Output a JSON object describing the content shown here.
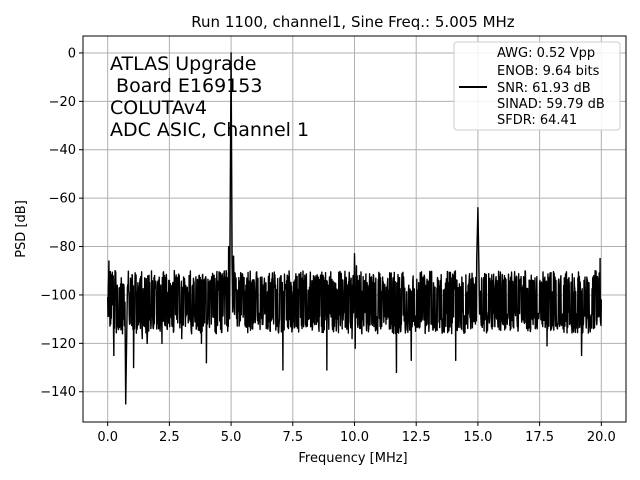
{
  "chart_data": {
    "type": "line",
    "title": "Run 1100, channel1, Sine Freq.: 5.005 MHz",
    "xlabel": "Frequency [MHz]",
    "ylabel": "PSD [dB]",
    "xlim": [
      -1.0,
      21.0
    ],
    "ylim": [
      -152.5,
      7.0
    ],
    "xticks": [
      0.0,
      2.5,
      5.0,
      7.5,
      10.0,
      12.5,
      15.0,
      17.5,
      20.0
    ],
    "xtick_labels": [
      "0.0",
      "2.5",
      "5.0",
      "7.5",
      "10.0",
      "12.5",
      "15.0",
      "17.5",
      "20.0"
    ],
    "yticks": [
      0,
      -20,
      -40,
      -60,
      -80,
      -100,
      -120,
      -140
    ],
    "ytick_labels": [
      "0",
      "−20",
      "−40",
      "−60",
      "−80",
      "−100",
      "−120",
      "−140"
    ],
    "grid": true,
    "noise_floor_db": -103,
    "series": [
      {
        "color": "#000000",
        "points": [
          [
            0.0,
            -101
          ],
          [
            0.05,
            -86
          ],
          [
            0.12,
            -112
          ],
          [
            0.2,
            -104
          ],
          [
            0.25,
            -125
          ],
          [
            0.3,
            -90
          ],
          [
            0.4,
            -113
          ],
          [
            0.5,
            -97
          ],
          [
            0.6,
            -116
          ],
          [
            0.7,
            -103
          ],
          [
            0.73,
            -145
          ],
          [
            0.8,
            -97
          ],
          [
            0.9,
            -112
          ],
          [
            1.0,
            -92
          ],
          [
            1.05,
            -130
          ],
          [
            1.1,
            -97
          ],
          [
            1.2,
            -113
          ],
          [
            1.3,
            -95
          ],
          [
            1.4,
            -118
          ],
          [
            1.5,
            -93
          ],
          [
            1.6,
            -120
          ],
          [
            1.7,
            -95
          ],
          [
            1.8,
            -109
          ],
          [
            1.9,
            -92
          ],
          [
            2.0,
            -111
          ],
          [
            2.1,
            -103
          ],
          [
            2.2,
            -120
          ],
          [
            2.3,
            -92
          ],
          [
            2.4,
            -113
          ],
          [
            2.5,
            -94
          ],
          [
            2.6,
            -112
          ],
          [
            2.7,
            -90
          ],
          [
            2.8,
            -110
          ],
          [
            2.9,
            -92
          ],
          [
            3.0,
            -118
          ],
          [
            3.1,
            -97
          ],
          [
            3.2,
            -108
          ],
          [
            3.3,
            -92
          ],
          [
            3.4,
            -116
          ],
          [
            3.5,
            -95
          ],
          [
            3.6,
            -113
          ],
          [
            3.7,
            -92
          ],
          [
            3.8,
            -120
          ],
          [
            3.9,
            -96
          ],
          [
            4.0,
            -128
          ],
          [
            4.1,
            -97
          ],
          [
            4.2,
            -112
          ],
          [
            4.3,
            -92
          ],
          [
            4.4,
            -116
          ],
          [
            4.5,
            -98
          ],
          [
            4.6,
            -108
          ],
          [
            4.7,
            -95
          ],
          [
            4.75,
            -112
          ],
          [
            4.8,
            -90
          ],
          [
            4.85,
            -109
          ],
          [
            4.9,
            -80
          ],
          [
            4.95,
            -86
          ],
          [
            5.0,
            0
          ],
          [
            5.04,
            -84
          ],
          [
            5.08,
            -104
          ],
          [
            5.1,
            -84
          ],
          [
            5.2,
            -93
          ],
          [
            5.3,
            -107
          ],
          [
            5.4,
            -91
          ],
          [
            5.5,
            -106
          ],
          [
            5.6,
            -96
          ],
          [
            5.7,
            -112
          ],
          [
            5.8,
            -95
          ],
          [
            5.9,
            -109
          ],
          [
            6.0,
            -98
          ],
          [
            6.1,
            -112
          ],
          [
            6.2,
            -95
          ],
          [
            6.3,
            -108
          ],
          [
            6.4,
            -97
          ],
          [
            6.5,
            -113
          ],
          [
            6.6,
            -95
          ],
          [
            6.7,
            -110
          ],
          [
            6.8,
            -96
          ],
          [
            6.9,
            -111
          ],
          [
            7.0,
            -96
          ],
          [
            7.1,
            -131
          ],
          [
            7.2,
            -97
          ],
          [
            7.3,
            -110
          ],
          [
            7.4,
            -96
          ],
          [
            7.5,
            -113
          ],
          [
            7.6,
            -98
          ],
          [
            7.7,
            -111
          ],
          [
            7.8,
            -96
          ],
          [
            7.9,
            -112
          ],
          [
            8.0,
            -97
          ],
          [
            8.1,
            -108
          ],
          [
            8.2,
            -96
          ],
          [
            8.3,
            -113
          ],
          [
            8.4,
            -97
          ],
          [
            8.5,
            -111
          ],
          [
            8.6,
            -95
          ],
          [
            8.7,
            -110
          ],
          [
            8.8,
            -98
          ],
          [
            8.88,
            -131
          ],
          [
            9.0,
            -97
          ],
          [
            9.1,
            -112
          ],
          [
            9.2,
            -95
          ],
          [
            9.3,
            -110
          ],
          [
            9.4,
            -98
          ],
          [
            9.5,
            -114
          ],
          [
            9.6,
            -96
          ],
          [
            9.7,
            -112
          ],
          [
            9.8,
            -94
          ],
          [
            9.9,
            -118
          ],
          [
            9.95,
            -92
          ],
          [
            10.0,
            -83
          ],
          [
            10.03,
            -122
          ],
          [
            10.08,
            -88
          ],
          [
            10.15,
            -112
          ],
          [
            10.2,
            -92
          ],
          [
            10.3,
            -116
          ],
          [
            10.4,
            -95
          ],
          [
            10.5,
            -111
          ],
          [
            10.6,
            -98
          ],
          [
            10.7,
            -112
          ],
          [
            10.8,
            -96
          ],
          [
            10.9,
            -110
          ],
          [
            11.0,
            -98
          ],
          [
            11.1,
            -113
          ],
          [
            11.2,
            -96
          ],
          [
            11.3,
            -109
          ],
          [
            11.4,
            -98
          ],
          [
            11.5,
            -112
          ],
          [
            11.6,
            -96
          ],
          [
            11.7,
            -132
          ],
          [
            11.8,
            -98
          ],
          [
            11.9,
            -112
          ],
          [
            12.0,
            -96
          ],
          [
            12.1,
            -110
          ],
          [
            12.2,
            -96
          ],
          [
            12.3,
            -127
          ],
          [
            12.4,
            -98
          ],
          [
            12.5,
            -113
          ],
          [
            12.6,
            -95
          ],
          [
            12.7,
            -111
          ],
          [
            12.8,
            -96
          ],
          [
            12.9,
            -109
          ],
          [
            13.0,
            -98
          ],
          [
            13.1,
            -112
          ],
          [
            13.2,
            -95
          ],
          [
            13.3,
            -108
          ],
          [
            13.4,
            -96
          ],
          [
            13.5,
            -110
          ],
          [
            13.6,
            -98
          ],
          [
            13.7,
            -113
          ],
          [
            13.8,
            -95
          ],
          [
            13.9,
            -111
          ],
          [
            14.0,
            -97
          ],
          [
            14.1,
            -127
          ],
          [
            14.2,
            -97
          ],
          [
            14.3,
            -111
          ],
          [
            14.4,
            -95
          ],
          [
            14.5,
            -112
          ],
          [
            14.6,
            -96
          ],
          [
            14.7,
            -110
          ],
          [
            14.8,
            -93
          ],
          [
            14.9,
            -112
          ],
          [
            14.95,
            -86
          ],
          [
            15.0,
            -64
          ],
          [
            15.04,
            -88
          ],
          [
            15.08,
            -108
          ],
          [
            15.15,
            -93
          ],
          [
            15.2,
            -112
          ],
          [
            15.3,
            -96
          ],
          [
            15.4,
            -110
          ],
          [
            15.5,
            -95
          ],
          [
            15.6,
            -113
          ],
          [
            15.7,
            -97
          ],
          [
            15.8,
            -110
          ],
          [
            15.9,
            -96
          ],
          [
            16.0,
            -112
          ],
          [
            16.1,
            -95
          ],
          [
            16.2,
            -108
          ],
          [
            16.3,
            -97
          ],
          [
            16.4,
            -110
          ],
          [
            16.5,
            -96
          ],
          [
            16.6,
            -113
          ],
          [
            16.7,
            -95
          ],
          [
            16.8,
            -108
          ],
          [
            16.9,
            -97
          ],
          [
            17.0,
            -112
          ],
          [
            17.1,
            -94
          ],
          [
            17.2,
            -110
          ],
          [
            17.3,
            -97
          ],
          [
            17.4,
            -114
          ],
          [
            17.5,
            -95
          ],
          [
            17.6,
            -112
          ],
          [
            17.7,
            -97
          ],
          [
            17.8,
            -121
          ],
          [
            17.9,
            -96
          ],
          [
            18.0,
            -111
          ],
          [
            18.1,
            -94
          ],
          [
            18.2,
            -112
          ],
          [
            18.3,
            -96
          ],
          [
            18.4,
            -110
          ],
          [
            18.5,
            -93
          ],
          [
            18.6,
            -108
          ],
          [
            18.7,
            -96
          ],
          [
            18.8,
            -112
          ],
          [
            18.9,
            -93
          ],
          [
            19.0,
            -110
          ],
          [
            19.1,
            -95
          ],
          [
            19.2,
            -125
          ],
          [
            19.3,
            -94
          ],
          [
            19.4,
            -110
          ],
          [
            19.5,
            -95
          ],
          [
            19.6,
            -112
          ],
          [
            19.7,
            -92
          ],
          [
            19.75,
            -90
          ],
          [
            19.8,
            -110
          ],
          [
            19.85,
            -93
          ],
          [
            19.9,
            -108
          ],
          [
            19.95,
            -85
          ],
          [
            20.0,
            -102
          ]
        ]
      }
    ],
    "annotation_lines": [
      "ATLAS Upgrade",
      " Board E169153",
      "COLUTAv4",
      "ADC ASIC, Channel 1"
    ],
    "legend_lines": [
      "AWG: 0.52 Vpp",
      "ENOB: 9.64 bits",
      "SNR: 61.93 dB",
      "SINAD: 59.79 dB",
      "SFDR: 64.41"
    ],
    "legend_position": "top-right"
  }
}
